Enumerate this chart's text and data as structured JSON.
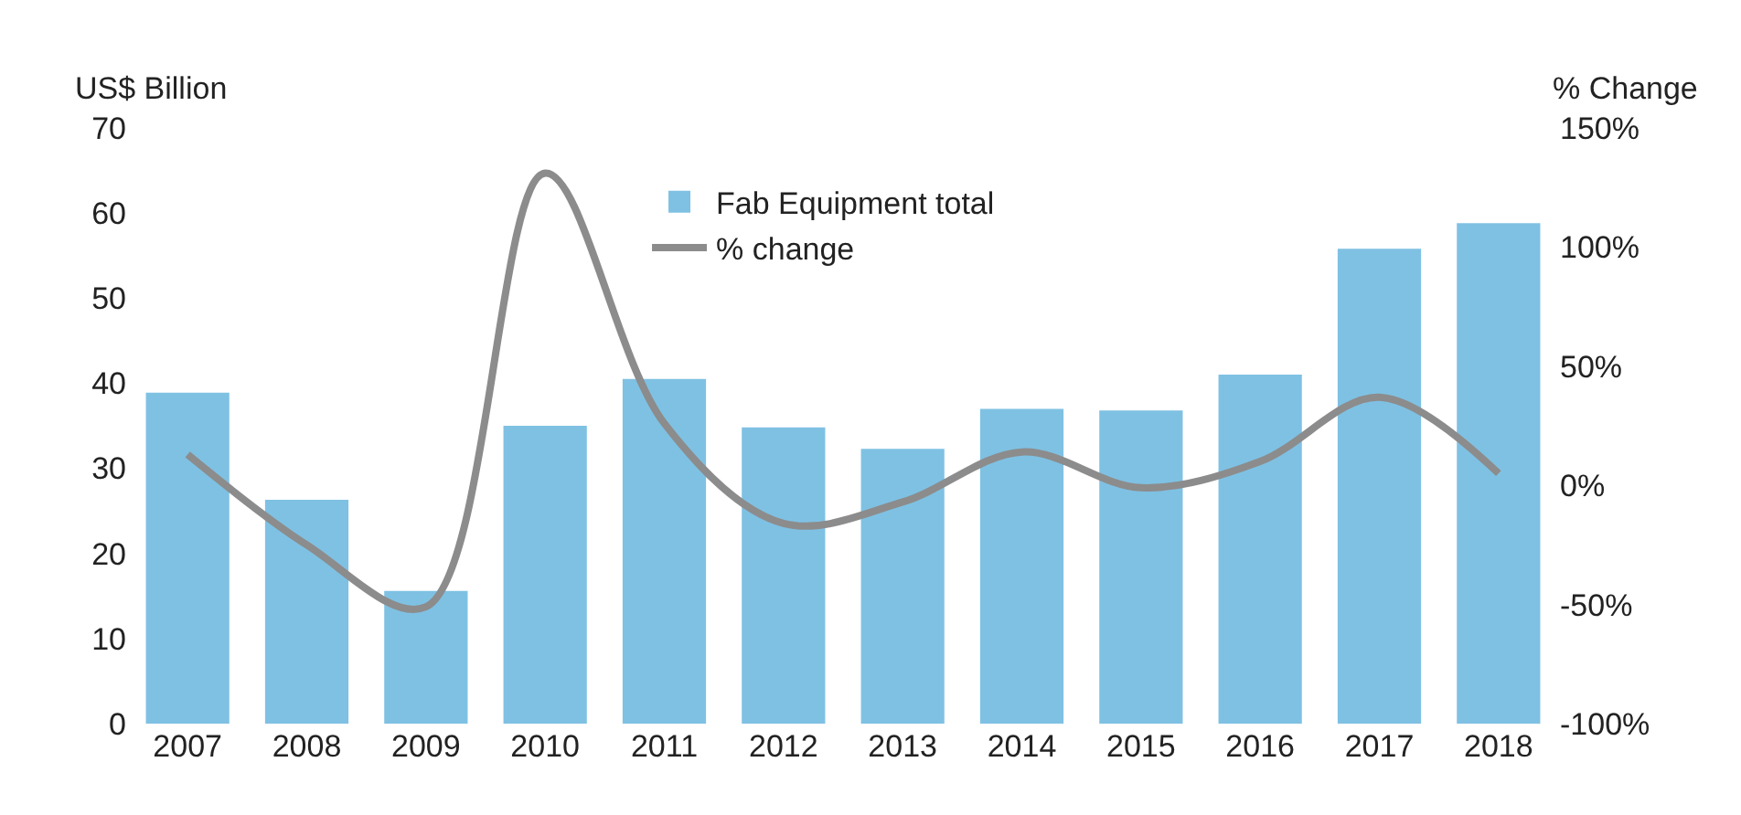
{
  "chart_data": {
    "type": "bar",
    "categories": [
      "2007",
      "2008",
      "2009",
      "2010",
      "2011",
      "2012",
      "2013",
      "2014",
      "2015",
      "2016",
      "2017",
      "2018"
    ],
    "series": [
      {
        "name": "Fab Equipment total",
        "color": "#7fc1e3",
        "values": [
          38.9,
          26.3,
          15.6,
          35,
          40.5,
          34.8,
          32.3,
          37,
          36.8,
          41,
          55.8,
          58.8
        ]
      },
      {
        "name": "% change",
        "type": "line",
        "axis": "y2",
        "color": "#8c8c8c",
        "values": [
          13,
          -25,
          -51,
          131,
          26,
          -16,
          -7,
          14,
          -1,
          10,
          37,
          5
        ]
      }
    ],
    "ylabel": "US$ Billion",
    "y2label": "% Change",
    "ylim": [
      0,
      70
    ],
    "yticks": [
      0,
      10,
      20,
      30,
      40,
      50,
      60,
      70
    ],
    "y2lim": [
      -100,
      150
    ],
    "y2ticks": [
      {
        "value": -100,
        "label": "-100%"
      },
      {
        "value": -50,
        "label": "-50%"
      },
      {
        "value": 0,
        "label": "0%"
      },
      {
        "value": 50,
        "label": "50%"
      },
      {
        "value": 100,
        "label": "100%"
      },
      {
        "value": 150,
        "label": "150%"
      }
    ],
    "grid": false,
    "legend": "top",
    "marker": "none",
    "line_style": "solid"
  }
}
